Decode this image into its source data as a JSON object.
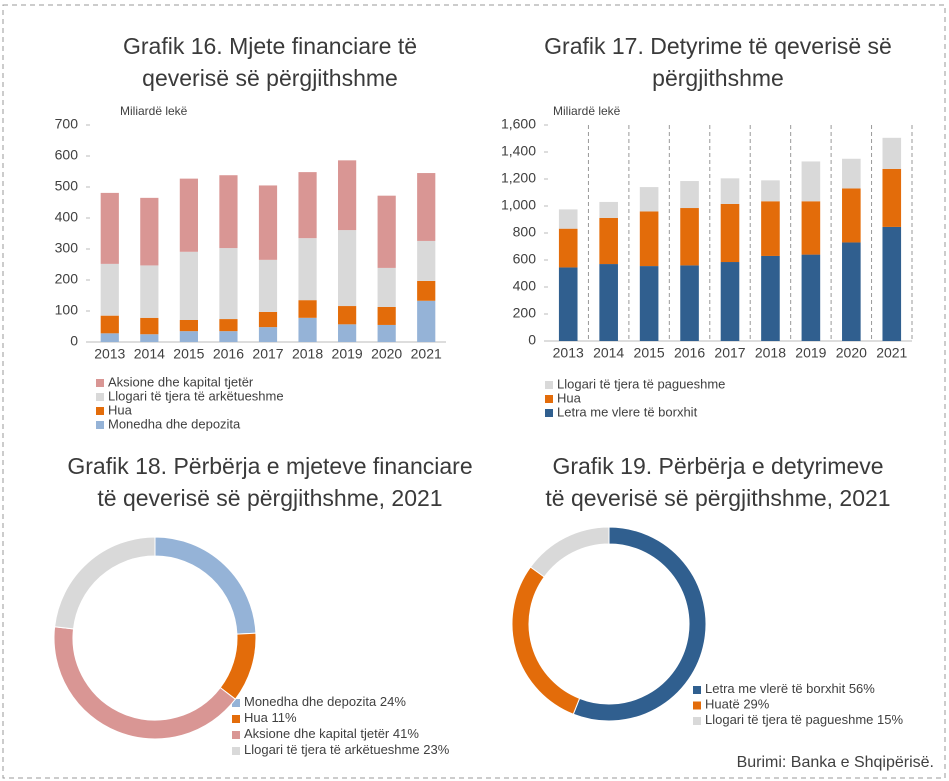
{
  "chart_data": [
    {
      "type": "bar",
      "stacked": true,
      "grid": false,
      "title": [
        "Grafik 16. Mjete financiare të",
        "qeverisë së përgjithshme"
      ],
      "y_axis_label": "Miliardë lekë",
      "categories": [
        "2013",
        "2014",
        "2015",
        "2016",
        "2017",
        "2018",
        "2019",
        "2020",
        "2021"
      ],
      "ylim": [
        0,
        700
      ],
      "yticks": [
        0,
        100,
        200,
        300,
        400,
        500,
        600,
        700
      ],
      "series": [
        {
          "name": "Monedha dhe depozita",
          "color": "#95b3d7",
          "values": [
            28,
            25,
            35,
            35,
            48,
            78,
            57,
            55,
            133
          ]
        },
        {
          "name": "Hua",
          "color": "#e36c0a",
          "values": [
            57,
            53,
            36,
            39,
            49,
            57,
            59,
            58,
            64
          ]
        },
        {
          "name": "Llogari të tjera të arkëtueshme",
          "color": "#d9d9d9",
          "values": [
            167,
            169,
            220,
            229,
            168,
            200,
            245,
            126,
            129
          ]
        },
        {
          "name": "Aksione dhe kapital tjetër",
          "color": "#d99694",
          "values": [
            229,
            218,
            236,
            235,
            240,
            213,
            225,
            233,
            219
          ]
        }
      ]
    },
    {
      "type": "bar",
      "stacked": true,
      "grid": true,
      "title": [
        "Grafik 17. Detyrime të qeverisë së",
        "përgjithshme"
      ],
      "y_axis_label": "Miliardë lekë",
      "categories": [
        "2013",
        "2014",
        "2015",
        "2016",
        "2017",
        "2018",
        "2019",
        "2020",
        "2021"
      ],
      "ylim": [
        0,
        1600
      ],
      "yticks": [
        0,
        200,
        400,
        600,
        800,
        {
          "value": 1000,
          "label": "1,000"
        },
        {
          "value": 1200,
          "label": "1,200"
        },
        {
          "value": 1400,
          "label": "1,400"
        },
        {
          "value": 1600,
          "label": "1,600"
        }
      ],
      "series": [
        {
          "name": "Letra me vlere të borxhit",
          "color": "#305f8f",
          "values": [
            545,
            570,
            555,
            560,
            585,
            630,
            640,
            730,
            845
          ]
        },
        {
          "name": "Hua",
          "color": "#e36c0a",
          "values": [
            287,
            342,
            405,
            425,
            430,
            405,
            395,
            400,
            430
          ]
        },
        {
          "name": "Llogari të tjera të pagueshme",
          "color": "#d9d9d9",
          "values": [
            143,
            118,
            180,
            200,
            190,
            155,
            295,
            220,
            230
          ]
        }
      ]
    },
    {
      "type": "pie",
      "donut": true,
      "title": [
        "Grafik 18. Përbërja e mjeteve financiare",
        "të qeverisë së përgjithshme, 2021"
      ],
      "categories": [
        "Monedha dhe depozita",
        "Hua",
        "Aksione dhe kapital tjetër",
        "Llogari të tjera të arkëtueshme"
      ],
      "values": [
        24,
        11,
        41,
        23
      ],
      "value_labels": [
        "24%",
        "11%",
        "41%",
        "23%"
      ],
      "colors": [
        "#95b3d7",
        "#e36c0a",
        "#d99694",
        "#d9d9d9"
      ]
    },
    {
      "type": "pie",
      "donut": true,
      "title": [
        "Grafik 19. Përbërja e detyrimeve",
        "të qeverisë së përgjithshme, 2021"
      ],
      "categories": [
        "Letra me vlerë të borxhit",
        "Huatë",
        "Llogari të tjera të pagueshme"
      ],
      "values": [
        56,
        29,
        15
      ],
      "value_labels": [
        "56%",
        "29%",
        "15%"
      ],
      "colors": [
        "#305f8f",
        "#e36c0a",
        "#d9d9d9"
      ]
    }
  ],
  "source": "Burimi: Banka e Shqipërisë."
}
